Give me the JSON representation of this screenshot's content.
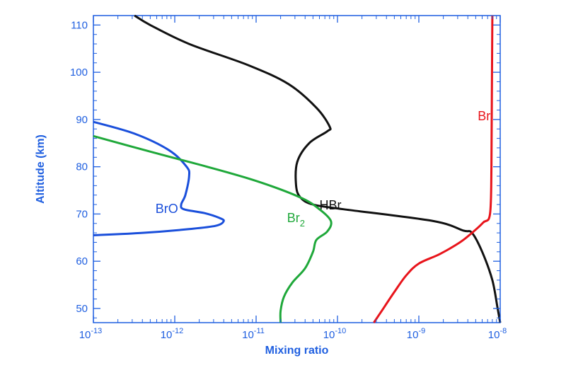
{
  "chart_data": {
    "type": "line",
    "xscale": "log",
    "xlim": [
      1e-13,
      1e-08
    ],
    "ylim": [
      47,
      112
    ],
    "xlabel": "Mixing ratio",
    "ylabel": "Altitude (km)",
    "x_tick_labels": [
      {
        "value": 1e-13,
        "base": "10",
        "exp": "-13"
      },
      {
        "value": 1e-12,
        "base": "10",
        "exp": "-12"
      },
      {
        "value": 1e-11,
        "base": "10",
        "exp": "-11"
      },
      {
        "value": 1e-10,
        "base": "10",
        "exp": "-10"
      },
      {
        "value": 1e-09,
        "base": "10",
        "exp": "-9"
      },
      {
        "value": 1e-08,
        "base": "10",
        "exp": "-8"
      }
    ],
    "y_ticks": [
      50,
      60,
      70,
      80,
      90,
      100,
      110
    ],
    "axis_color": "#1f5fe0",
    "grid": false,
    "series": [
      {
        "name": "HBr",
        "label": {
          "text": "HBr",
          "sub": "",
          "x": 6e-11,
          "y": 71
        },
        "color": "#111111",
        "points": [
          [
            3.2e-13,
            112
          ],
          [
            5e-13,
            110
          ],
          [
            1.5e-12,
            106
          ],
          [
            8e-12,
            101.5
          ],
          [
            2.5e-11,
            97.5
          ],
          [
            5.5e-11,
            92.5
          ],
          [
            8e-11,
            88.5
          ],
          [
            7.5e-11,
            87.5
          ],
          [
            4.5e-11,
            85
          ],
          [
            3.2e-11,
            81
          ],
          [
            3.1e-11,
            76
          ],
          [
            3.5e-11,
            73.5
          ],
          [
            5e-11,
            72
          ],
          [
            1.2e-10,
            71
          ],
          [
            1.5e-09,
            68.5
          ],
          [
            3.5e-09,
            66.5
          ],
          [
            4.5e-09,
            66
          ],
          [
            6e-09,
            62
          ],
          [
            8e-09,
            56
          ],
          [
            9.3e-09,
            50
          ],
          [
            1e-08,
            47
          ]
        ]
      },
      {
        "name": "Br",
        "label": {
          "text": "Br",
          "sub": "",
          "x": 5.3e-09,
          "y": 89.8
        },
        "color": "#e8141b",
        "points": [
          [
            2.8e-10,
            47
          ],
          [
            3.5e-10,
            49.5
          ],
          [
            5e-10,
            53.5
          ],
          [
            7e-10,
            57
          ],
          [
            1e-09,
            59.5
          ],
          [
            1.8e-09,
            61.5
          ],
          [
            3.2e-09,
            64
          ],
          [
            4.5e-09,
            66
          ],
          [
            6.2e-09,
            68.2
          ],
          [
            7.5e-09,
            70
          ],
          [
            7.8e-09,
            80
          ],
          [
            7.9e-09,
            95
          ],
          [
            8e-09,
            112
          ]
        ]
      },
      {
        "name": "BrO",
        "label": {
          "text": "BrO",
          "sub": "",
          "x": 5.8e-13,
          "y": 70.2
        },
        "color": "#1a4fdb",
        "points": [
          [
            1e-13,
            89.5
          ],
          [
            3.2e-13,
            87
          ],
          [
            8.5e-13,
            83.5
          ],
          [
            1.4e-12,
            80
          ],
          [
            1.5e-12,
            78
          ],
          [
            1.35e-12,
            74
          ],
          [
            1.2e-12,
            72
          ],
          [
            1.3e-12,
            71
          ],
          [
            2.3e-12,
            70.2
          ],
          [
            3.5e-12,
            69.2
          ],
          [
            4e-12,
            68.5
          ],
          [
            3.2e-12,
            67.5
          ],
          [
            1.5e-12,
            66.8
          ],
          [
            4e-13,
            66
          ],
          [
            1e-13,
            65.5
          ]
        ]
      },
      {
        "name": "Br2",
        "label": {
          "text": "Br",
          "sub": "2",
          "x": 2.4e-11,
          "y": 68.3
        },
        "color": "#1fa83a",
        "points": [
          [
            1e-13,
            86.5
          ],
          [
            5.5e-13,
            83
          ],
          [
            2.5e-12,
            80
          ],
          [
            1e-11,
            77
          ],
          [
            3.5e-11,
            73.5
          ],
          [
            6e-11,
            71
          ],
          [
            8.3e-11,
            68.5
          ],
          [
            7.5e-11,
            66.3
          ],
          [
            5.5e-11,
            64.5
          ],
          [
            5e-11,
            62
          ],
          [
            4e-11,
            58.5
          ],
          [
            2.8e-11,
            55.5
          ],
          [
            2.2e-11,
            52.5
          ],
          [
            2e-11,
            49.5
          ],
          [
            2e-11,
            47
          ]
        ]
      }
    ]
  }
}
